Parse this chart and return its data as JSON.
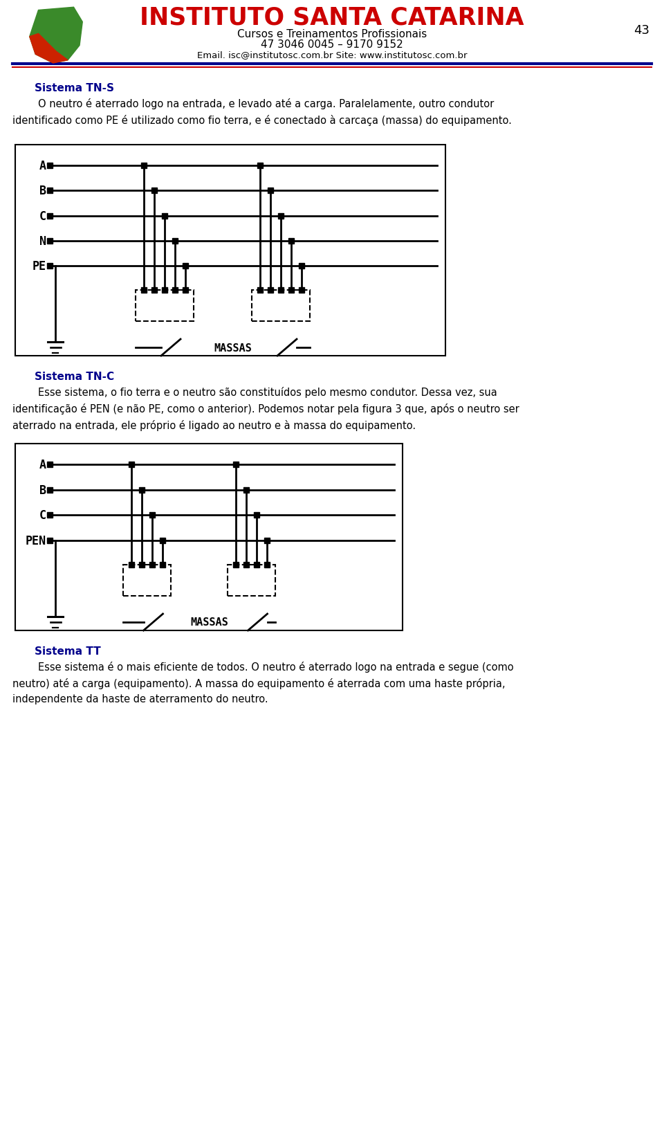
{
  "title": "INSTITUTO SANTA CATARINA",
  "subtitle1": "Cursos e Treinamentos Profissionais",
  "subtitle2": "47 3046 0045 – 9170 9152",
  "email_text": "Email. isc@institutosc.com.br Site: www.institutosc.com.br",
  "page_number": "43",
  "title_color": "#cc0000",
  "section1_title": "Sistema TN-S",
  "section1_text": "        O neutro é aterrado logo na entrada, e levado até a carga. Paralelamente, outro condutor\nidentificado como PE é utilizado como fio terra, e é conectado à carcaça (massa) do equipamento.",
  "section2_title": "Sistema TN-C",
  "section2_text": "        Esse sistema, o fio terra e o neutro são constituídos pelo mesmo condutor. Dessa vez, sua\nidentificação é PEN (e não PE, como o anterior). Podemos notar pela figura 3 que, após o neutro ser\naterrado na entrada, ele próprio é ligado ao neutro e à massa do equipamento.",
  "section3_title": "Sistema TT",
  "section3_text": "        Esse sistema é o mais eficiente de todos. O neutro é aterrado logo na entrada e segue (como\nneutro) até a carga (equipamento). A massa do equipamento é aterrada com uma haste própria,\nindependente da haste de aterramento do neutro.",
  "bg_color": "#ffffff",
  "text_color": "#000000",
  "section_title_color": "#00008B",
  "header_blue": "#00008B",
  "header_red": "#cc0000"
}
